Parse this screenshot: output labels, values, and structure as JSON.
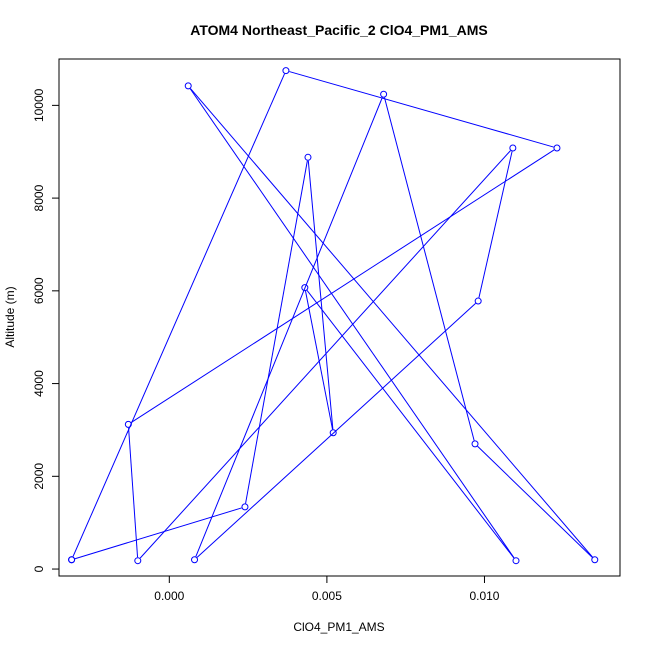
{
  "chart_data": {
    "type": "line",
    "title": "ATOM4 Northeast_Pacific_2 ClO4_PM1_AMS",
    "xlabel": "ClO4_PM1_AMS",
    "ylabel": "Altitude (m)",
    "xlim": [
      -0.0035,
      0.0143
    ],
    "ylim": [
      -150,
      11000
    ],
    "x_ticks": [
      0.0,
      0.005,
      0.01
    ],
    "x_tick_labels": [
      "0.000",
      "0.005",
      "0.010"
    ],
    "y_ticks": [
      0,
      2000,
      4000,
      6000,
      8000,
      10000
    ],
    "y_tick_labels": [
      "0",
      "2000",
      "4000",
      "6000",
      "8000",
      "10000"
    ],
    "grid": false,
    "legend": "none",
    "series": [
      {
        "color": "#0000ff",
        "marker": "open-circle",
        "points": [
          {
            "x": -0.0031,
            "y": 200
          },
          {
            "x": 0.0024,
            "y": 1340
          },
          {
            "x": 0.0044,
            "y": 8880
          },
          {
            "x": 0.0052,
            "y": 2940
          },
          {
            "x": 0.0043,
            "y": 6070
          },
          {
            "x": 0.011,
            "y": 180
          },
          {
            "x": 0.0006,
            "y": 10420
          },
          {
            "x": 0.0135,
            "y": 200
          },
          {
            "x": 0.0097,
            "y": 2700
          },
          {
            "x": 0.0068,
            "y": 10240
          },
          {
            "x": 0.0008,
            "y": 200
          },
          {
            "x": 0.0098,
            "y": 5780
          },
          {
            "x": 0.0109,
            "y": 9080
          },
          {
            "x": -0.001,
            "y": 180
          },
          {
            "x": -0.0013,
            "y": 3120
          },
          {
            "x": 0.0123,
            "y": 9080
          },
          {
            "x": 0.0037,
            "y": 10750
          },
          {
            "x": -0.0031,
            "y": 200
          }
        ]
      }
    ]
  }
}
